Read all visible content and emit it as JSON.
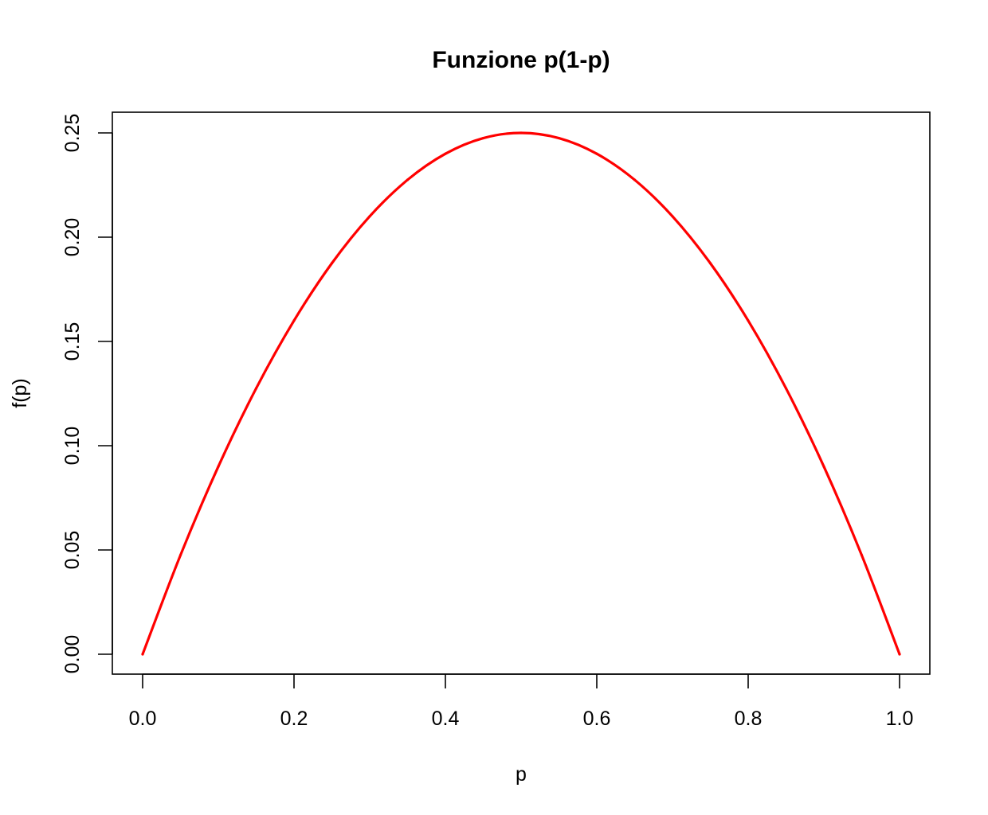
{
  "chart_data": {
    "type": "line",
    "title": "Funzione p(1-p)",
    "xlabel": "p",
    "ylabel": "f(p)",
    "xlim": [
      0,
      1
    ],
    "ylim": [
      0,
      0.25
    ],
    "xticks": [
      0.0,
      0.2,
      0.4,
      0.6,
      0.8,
      1.0
    ],
    "xtick_labels": [
      "0.0",
      "0.2",
      "0.4",
      "0.6",
      "0.8",
      "1.0"
    ],
    "yticks": [
      0.0,
      0.05,
      0.1,
      0.15,
      0.2,
      0.25
    ],
    "ytick_labels": [
      "0.00",
      "0.05",
      "0.10",
      "0.15",
      "0.20",
      "0.25"
    ],
    "grid": false,
    "series": [
      {
        "color": "#ff0000",
        "x": [
          0.0,
          0.05,
          0.1,
          0.15,
          0.2,
          0.25,
          0.3,
          0.35,
          0.4,
          0.45,
          0.5,
          0.55,
          0.6,
          0.65,
          0.7,
          0.75,
          0.8,
          0.85,
          0.9,
          0.95,
          1.0
        ],
        "y": [
          0.0,
          0.0475,
          0.09,
          0.1275,
          0.16,
          0.1875,
          0.21,
          0.2275,
          0.24,
          0.2475,
          0.25,
          0.2475,
          0.24,
          0.2275,
          0.21,
          0.1875,
          0.16,
          0.1275,
          0.09,
          0.0475,
          0.0
        ]
      }
    ]
  }
}
